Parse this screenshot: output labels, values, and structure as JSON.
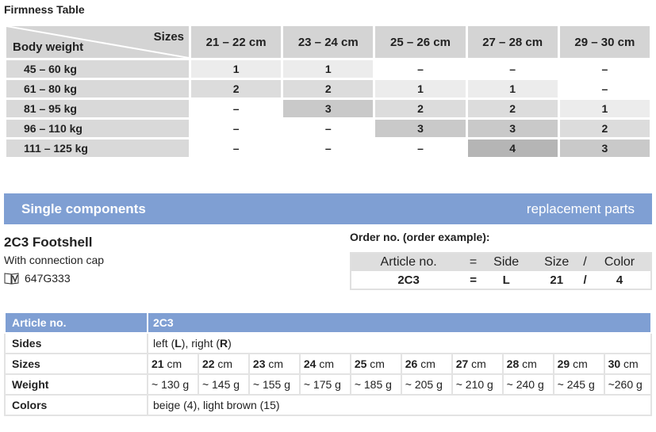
{
  "firmness": {
    "title": "Firmness Table",
    "sizes_label": "Sizes",
    "body_weight_label": "Body weight",
    "columns": [
      "21 – 22 cm",
      "23 – 24 cm",
      "25 – 26 cm",
      "27 – 28 cm",
      "29 – 30 cm"
    ],
    "rows": [
      {
        "weight": "45 – 60 kg",
        "values": [
          "1",
          "1",
          "–",
          "–",
          "–"
        ]
      },
      {
        "weight": "61 – 80 kg",
        "values": [
          "2",
          "2",
          "1",
          "1",
          "–"
        ]
      },
      {
        "weight": "81 – 95 kg",
        "values": [
          "–",
          "3",
          "2",
          "2",
          "1"
        ]
      },
      {
        "weight": "96 – 110 kg",
        "values": [
          "–",
          "–",
          "3",
          "3",
          "2"
        ]
      },
      {
        "weight": "111 – 125 kg",
        "values": [
          "–",
          "–",
          "–",
          "4",
          "3"
        ]
      }
    ]
  },
  "section": {
    "title": "Single components",
    "right": "replacement parts",
    "color": "#7f9fd3"
  },
  "product": {
    "name": "2C3 Footshell",
    "subtitle": "With connection cap",
    "ref_icon": "manual-book-icon",
    "ref": "647G333"
  },
  "order": {
    "label": "Order no. (order example):",
    "header": [
      "Article no.",
      "=",
      "Side",
      "Size",
      "/",
      "Color"
    ],
    "values": [
      "2C3",
      "=",
      "L",
      "21",
      "/",
      "4"
    ]
  },
  "spec": {
    "article_label": "Article no.",
    "article": "2C3",
    "sides_label": "Sides",
    "sides": {
      "p1": "left (",
      "L": "L",
      "p2": "), right (",
      "R": "R",
      "p3": ")"
    },
    "sizes_label": "Sizes",
    "sizes": [
      {
        "n": "21",
        "u": " cm"
      },
      {
        "n": "22",
        "u": " cm"
      },
      {
        "n": "23",
        "u": " cm"
      },
      {
        "n": "24",
        "u": " cm"
      },
      {
        "n": "25",
        "u": " cm"
      },
      {
        "n": "26",
        "u": " cm"
      },
      {
        "n": "27",
        "u": " cm"
      },
      {
        "n": "28",
        "u": " cm"
      },
      {
        "n": "29",
        "u": " cm"
      },
      {
        "n": "30",
        "u": " cm"
      }
    ],
    "weight_label": "Weight",
    "weights": [
      "~ 130 g",
      "~ 145 g",
      "~ 155 g",
      "~ 175 g",
      "~ 185 g",
      "~ 205 g",
      "~ 210 g",
      "~ 240 g",
      "~ 245 g",
      "~260 g"
    ],
    "colors_label": "Colors",
    "colors": "beige (4), light brown (15)"
  }
}
